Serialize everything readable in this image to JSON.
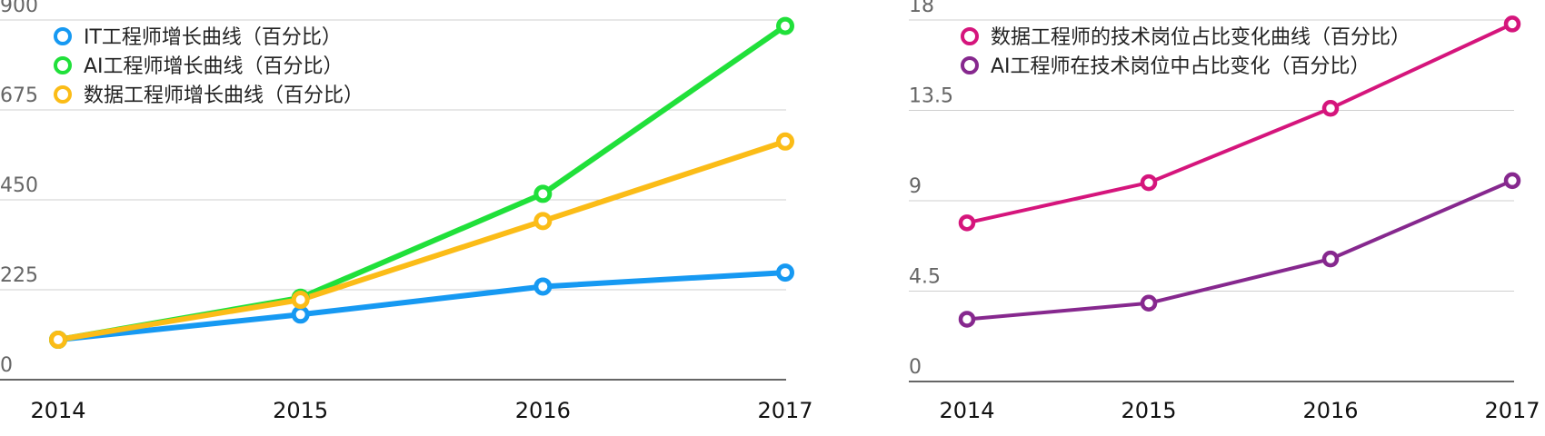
{
  "chart_data": [
    {
      "type": "line",
      "categories": [
        "2014",
        "2015",
        "2016",
        "2017"
      ],
      "ylim": [
        0,
        900
      ],
      "yticks": [
        "0",
        "225",
        "450",
        "675",
        "900"
      ],
      "grid": true,
      "legend_position": "top-left",
      "series": [
        {
          "name": "IT工程师增长曲线（百分比）",
          "color": "#1699f2",
          "values": [
            100,
            163,
            233,
            268
          ]
        },
        {
          "name": "AI工程师增长曲线（百分比）",
          "color": "#20e03a",
          "values": [
            100,
            205,
            465,
            885
          ]
        },
        {
          "name": "数据工程师增长曲线（百分比）",
          "color": "#fbbc17",
          "values": [
            100,
            200,
            397,
            596
          ]
        }
      ]
    },
    {
      "type": "line",
      "categories": [
        "2014",
        "2015",
        "2016",
        "2017"
      ],
      "ylim": [
        0,
        18
      ],
      "yticks": [
        "0",
        "4.5",
        "9",
        "13.5",
        "18"
      ],
      "grid": true,
      "legend_position": "top-left",
      "series": [
        {
          "name": "数据工程师的技术岗位占比变化曲线（百分比）",
          "color": "#d5157c",
          "values": [
            7.9,
            9.9,
            13.6,
            17.8
          ]
        },
        {
          "name": "AI工程师在技术岗位中占比变化（百分比）",
          "color": "#86288e",
          "values": [
            3.1,
            3.9,
            6.1,
            10.0
          ]
        }
      ]
    }
  ]
}
